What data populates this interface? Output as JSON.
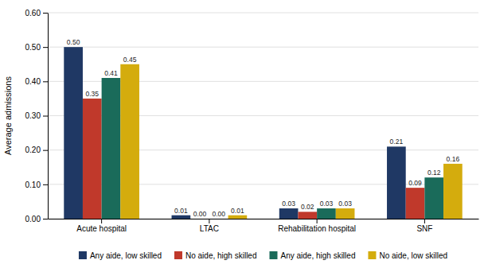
{
  "chart_data": {
    "type": "bar",
    "categories": [
      "Acute hospital",
      "LTAC",
      "Rehabilitation hospital",
      "SNF"
    ],
    "series": [
      {
        "name": "Any aide, low skilled",
        "color": "#1f3864",
        "values": [
          0.5,
          0.01,
          0.03,
          0.21
        ],
        "value_labels": [
          "0.50",
          "0.01",
          "0.03",
          "0.21"
        ]
      },
      {
        "name": "No aide, high skilled",
        "color": "#c0392b",
        "values": [
          0.35,
          0.0,
          0.02,
          0.09
        ],
        "value_labels": [
          "0.35",
          "0.00",
          "0.02",
          "0.09"
        ]
      },
      {
        "name": "Any aide, high skilled",
        "color": "#1a6b5a",
        "values": [
          0.41,
          0.0,
          0.03,
          0.12
        ],
        "value_labels": [
          "0.41",
          "0.00",
          "0.03",
          "0.12"
        ]
      },
      {
        "name": "No aide, low skilled",
        "color": "#d4ac0d",
        "values": [
          0.45,
          0.01,
          0.03,
          0.16
        ],
        "value_labels": [
          "0.45",
          "0.01",
          "0.03",
          "0.16"
        ]
      }
    ],
    "ylabel": "Average admissions",
    "ylim": [
      0.0,
      0.6
    ],
    "yticks": [
      {
        "value": 0.0,
        "label": "0.00"
      },
      {
        "value": 0.1,
        "label": "0.10"
      },
      {
        "value": 0.2,
        "label": "0.20"
      },
      {
        "value": 0.3,
        "label": "0.30"
      },
      {
        "value": 0.4,
        "label": "0.40"
      },
      {
        "value": 0.5,
        "label": "0.50"
      },
      {
        "value": 0.6,
        "label": "0.60"
      }
    ],
    "grid": true,
    "data_labels": true,
    "legend": "bottom"
  }
}
